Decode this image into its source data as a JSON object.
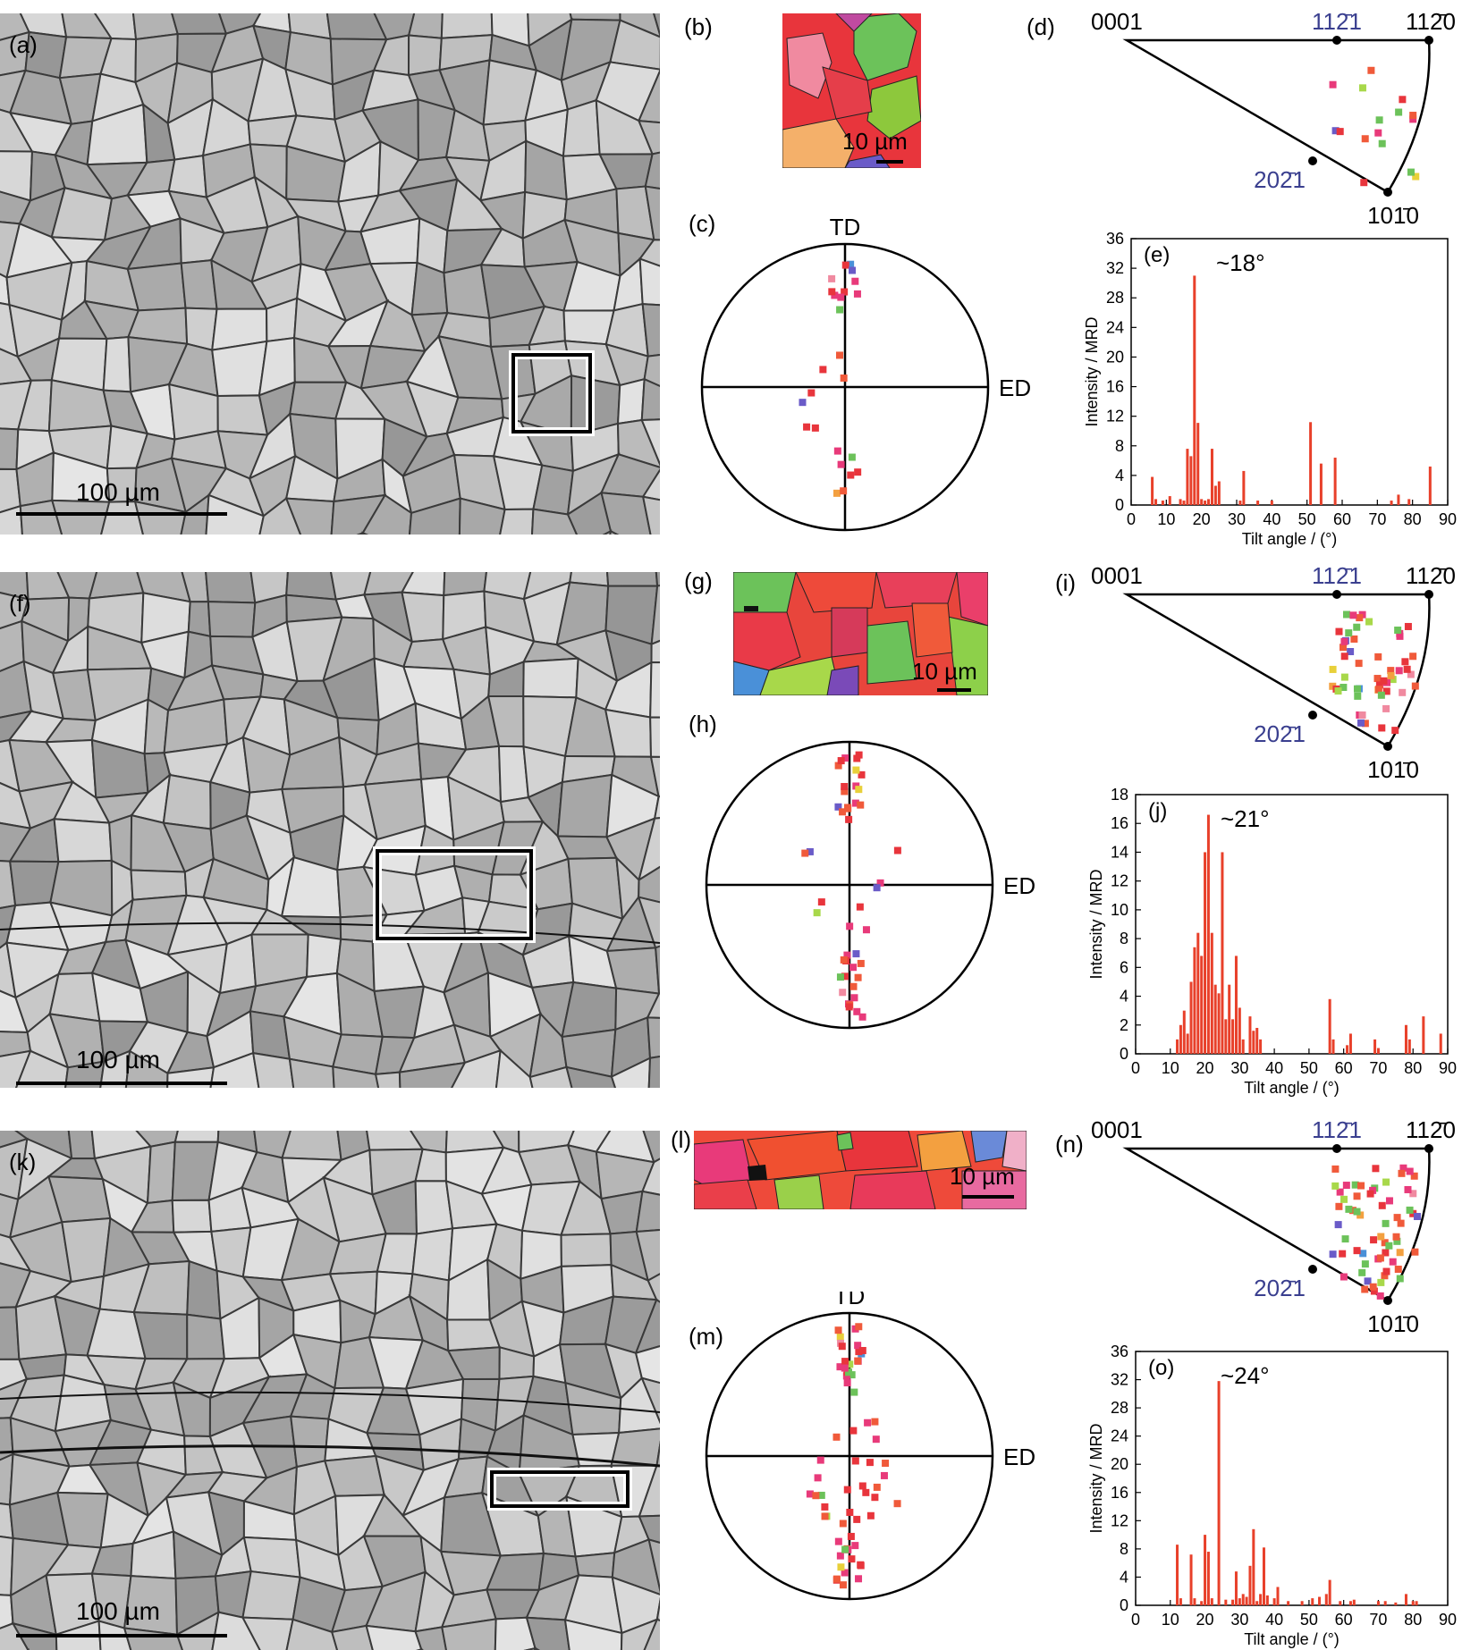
{
  "figure": {
    "rows": [
      {
        "micro_label": "(a)",
        "micro_scale": "100 µm",
        "ebsd_label": "(b)",
        "ebsd_scale": "10 µm",
        "pole_label": "(c)",
        "pole_top": "TD",
        "pole_right": "ED",
        "ipf_label": "(d)",
        "ipf_corners": {
          "c0001": "0001",
          "c1120": "112̄0",
          "c1010": "101̄0",
          "c1121": "112̄1",
          "c2021": "202̄1"
        },
        "hist_label": "(e)",
        "hist_peak": "~18°"
      },
      {
        "micro_label": "(f)",
        "micro_scale": "100 µm",
        "ebsd_label": "(g)",
        "ebsd_scale": "10 µm",
        "pole_label": "(h)",
        "pole_top": "TD",
        "pole_right": "ED",
        "ipf_label": "(i)",
        "ipf_corners": {
          "c0001": "0001",
          "c1120": "112̄0",
          "c1010": "101̄0",
          "c1121": "112̄1",
          "c2021": "202̄1"
        },
        "hist_label": "(j)",
        "hist_peak": "~21°"
      },
      {
        "micro_label": "(k)",
        "micro_scale": "100 µm",
        "ebsd_label": "(l)",
        "ebsd_scale": "10 µm",
        "pole_label": "(m)",
        "pole_top": "TD",
        "pole_right": "ED",
        "ipf_label": "(n)",
        "ipf_corners": {
          "c0001": "0001",
          "c1120": "112̄0",
          "c1010": "101̄0",
          "c1121": "112̄1",
          "c2021": "202̄1"
        },
        "hist_label": "(o)",
        "hist_peak": "~24°"
      }
    ],
    "colors": {
      "bar": "#e8402a",
      "ipf_text": "#3a3f8f"
    }
  },
  "chart_data": [
    {
      "type": "bar",
      "xlabel": "Tilt angle / (°)",
      "ylabel": "Intensity / MRD",
      "xlim": [
        0,
        90
      ],
      "ylim": [
        0,
        36
      ],
      "xticks": [
        0,
        10,
        20,
        30,
        40,
        50,
        60,
        70,
        80,
        90
      ],
      "yticks": [
        0,
        4,
        8,
        12,
        16,
        20,
        24,
        28,
        32,
        36
      ],
      "annotation": "~18°",
      "x": [
        6,
        7,
        9,
        11,
        14,
        15,
        16,
        17,
        18,
        19,
        20,
        21,
        22,
        23,
        24,
        25,
        31,
        32,
        36,
        40,
        51,
        54,
        58,
        74,
        76,
        79,
        85
      ],
      "values": [
        3.8,
        0.8,
        0.6,
        1.2,
        0.8,
        0.6,
        7.6,
        6.6,
        31,
        11.1,
        0.8,
        0.6,
        0.8,
        7.6,
        2.6,
        3.2,
        0.6,
        4.6,
        0.6,
        0.6,
        11.2,
        5.6,
        6.4,
        0.6,
        1.4,
        0.8,
        5.2
      ]
    },
    {
      "type": "bar",
      "xlabel": "Tilt angle / (°)",
      "ylabel": "Intensity / MRD",
      "xlim": [
        0,
        90
      ],
      "ylim": [
        0,
        18
      ],
      "xticks": [
        0,
        10,
        20,
        30,
        40,
        50,
        60,
        70,
        80,
        90
      ],
      "yticks": [
        0,
        2,
        4,
        6,
        8,
        10,
        12,
        14,
        16,
        18
      ],
      "annotation": "~21°",
      "x": [
        12,
        13,
        14,
        15,
        16,
        17,
        18,
        19,
        20,
        21,
        22,
        23,
        24,
        25,
        26,
        27,
        28,
        29,
        30,
        31,
        33,
        34,
        35,
        36,
        56,
        57,
        61,
        62,
        69,
        70,
        78,
        79,
        83,
        88
      ],
      "values": [
        1.0,
        2.0,
        3.0,
        1.4,
        5.0,
        7.4,
        8.4,
        6.8,
        14.0,
        16.6,
        8.4,
        4.8,
        4.2,
        14.0,
        2.4,
        4.8,
        2.4,
        6.8,
        3.2,
        1.0,
        2.6,
        1.6,
        1.8,
        1.0,
        3.8,
        1.0,
        0.6,
        1.4,
        1.0,
        0.4,
        2.0,
        1.0,
        2.6,
        1.4
      ]
    },
    {
      "type": "bar",
      "xlabel": "Tilt angle / (°)",
      "ylabel": "Intensity / MRD",
      "xlim": [
        0,
        90
      ],
      "ylim": [
        0,
        36
      ],
      "xticks": [
        0,
        10,
        20,
        30,
        40,
        50,
        60,
        70,
        80,
        90
      ],
      "yticks": [
        0,
        4,
        8,
        12,
        16,
        20,
        24,
        28,
        32,
        36
      ],
      "annotation": "~24°",
      "x": [
        12,
        13,
        16,
        17,
        19,
        20,
        21,
        22,
        24,
        26,
        28,
        29,
        30,
        31,
        32,
        33,
        34,
        35,
        36,
        37,
        38,
        40,
        41,
        44,
        48,
        51,
        53,
        55,
        56,
        59,
        62,
        63,
        70,
        72,
        75,
        78,
        80,
        81
      ],
      "values": [
        8.6,
        1.0,
        7.2,
        1.0,
        0.6,
        10.0,
        7.6,
        1.0,
        31.8,
        0.8,
        0.8,
        4.8,
        1.0,
        1.6,
        1.2,
        5.6,
        10.8,
        0.6,
        1.6,
        8.2,
        1.4,
        1.0,
        2.6,
        0.6,
        0.6,
        1.0,
        1.2,
        1.6,
        3.6,
        0.6,
        0.6,
        0.8,
        0.6,
        0.6,
        0.4,
        1.6,
        0.6,
        0.6
      ]
    }
  ]
}
